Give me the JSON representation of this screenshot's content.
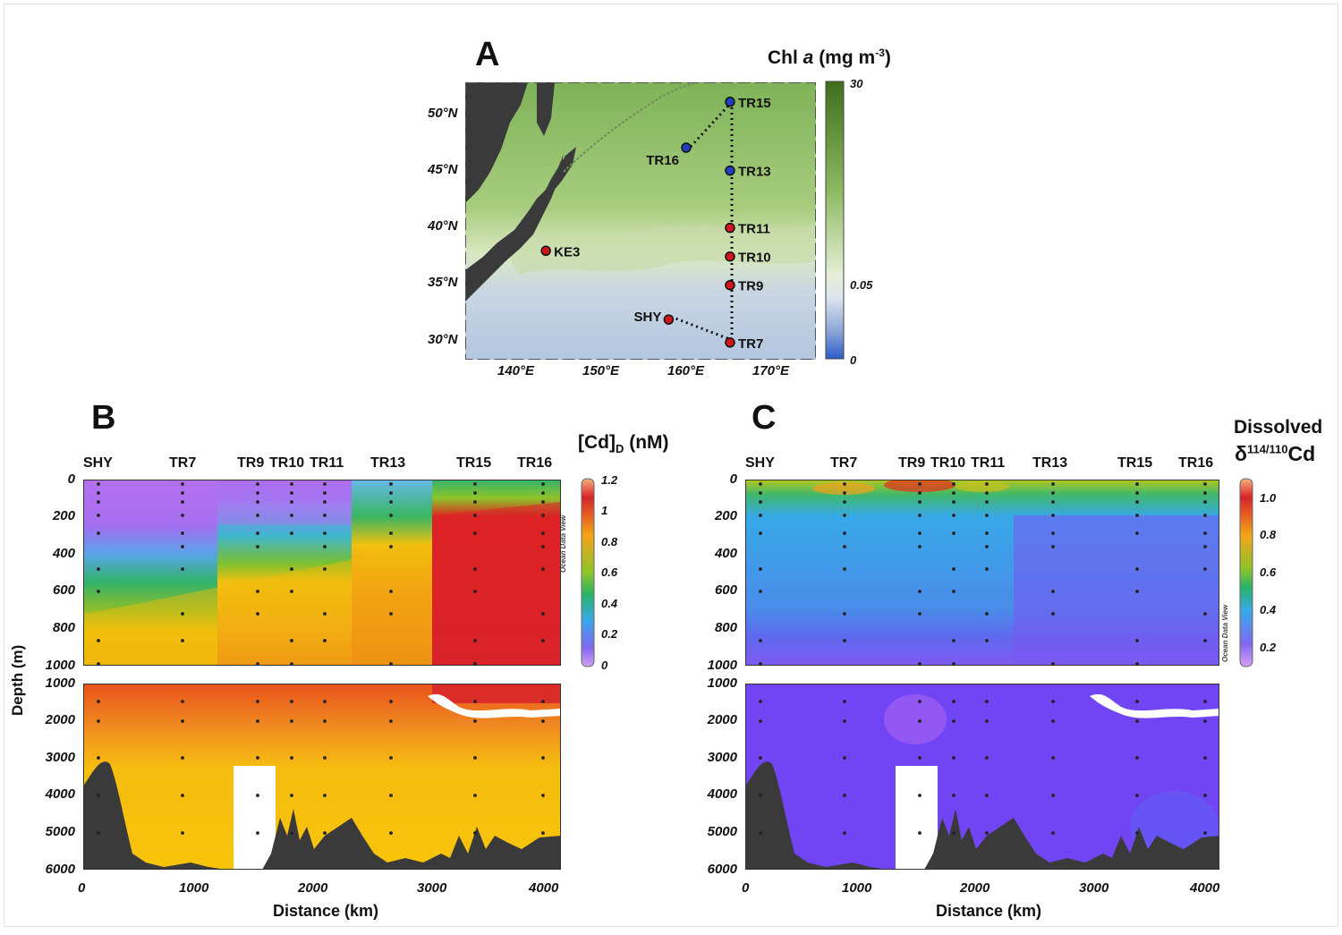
{
  "panels": {
    "a": {
      "letter": "A"
    },
    "b": {
      "letter": "B"
    },
    "c": {
      "letter": "C"
    }
  },
  "map": {
    "colorbar_title_main": "Chl ",
    "colorbar_title_italic": "a",
    "colorbar_title_unit": " (mg m",
    "colorbar_title_exp": "-3",
    "colorbar_title_close": ")",
    "colorbar_ticks": [
      "30",
      "0.05",
      "0"
    ],
    "lat_labels": [
      "50°N",
      "45°N",
      "40°N",
      "35°N",
      "30°N"
    ],
    "lon_labels": [
      "140°E",
      "150°E",
      "160°E",
      "170°E"
    ],
    "stations": [
      {
        "name": "TR15",
        "lat": 51,
        "lon": 165,
        "color": "#1f3fbf"
      },
      {
        "name": "TR16",
        "lat": 47,
        "lon": 160,
        "color": "#1f3fbf"
      },
      {
        "name": "TR13",
        "lat": 45,
        "lon": 165,
        "color": "#1f3fbf"
      },
      {
        "name": "TR11",
        "lat": 40,
        "lon": 165,
        "color": "#d0151b"
      },
      {
        "name": "TR10",
        "lat": 37.5,
        "lon": 165,
        "color": "#d0151b"
      },
      {
        "name": "TR9",
        "lat": 35,
        "lon": 165,
        "color": "#d0151b"
      },
      {
        "name": "KE3",
        "lat": 38,
        "lon": 144,
        "color": "#d0151b"
      },
      {
        "name": "SHY",
        "lat": 32,
        "lon": 158,
        "color": "#d0151b"
      },
      {
        "name": "TR7",
        "lat": 30,
        "lon": 165,
        "color": "#d0151b"
      }
    ]
  },
  "sections": {
    "station_labels": [
      "SHY",
      "TR7",
      "TR9",
      "TR10",
      "TR11",
      "TR13",
      "TR15",
      "TR16"
    ],
    "upper_depth_ticks": [
      "0",
      "200",
      "400",
      "600",
      "800",
      "1000"
    ],
    "lower_depth_ticks": [
      "1000",
      "2000",
      "3000",
      "4000",
      "5000",
      "6000"
    ],
    "distance_ticks": [
      "0",
      "1000",
      "2000",
      "3000",
      "4000"
    ],
    "ylabel": "Depth (m)",
    "xlabel": "Distance (km)",
    "watermark": "Ocean Data View",
    "b": {
      "cb_title_main": "[Cd]",
      "cb_title_sub": "D",
      "cb_title_unit": " (nM)",
      "cb_ticks": [
        "1.2",
        "1",
        "0.8",
        "0.6",
        "0.4",
        "0.2",
        "0"
      ]
    },
    "c": {
      "cb_title_line1": "Dissolved",
      "cb_title_delta": "δ",
      "cb_title_sup": "114/110",
      "cb_title_cd": "Cd",
      "cb_ticks": [
        "1.0",
        "0.8",
        "0.6",
        "0.4",
        "0.2"
      ]
    }
  },
  "colors": {
    "land": "#3a3a3a",
    "bathymetry": "#3a3a3a",
    "cd_high": "#d6222a",
    "cd_mid": "#f5c00a",
    "cd_low": "#b06ef0",
    "delta_low": "#7a48f2",
    "delta_mid": "#37a8e8",
    "delta_high": "#d8262a"
  }
}
